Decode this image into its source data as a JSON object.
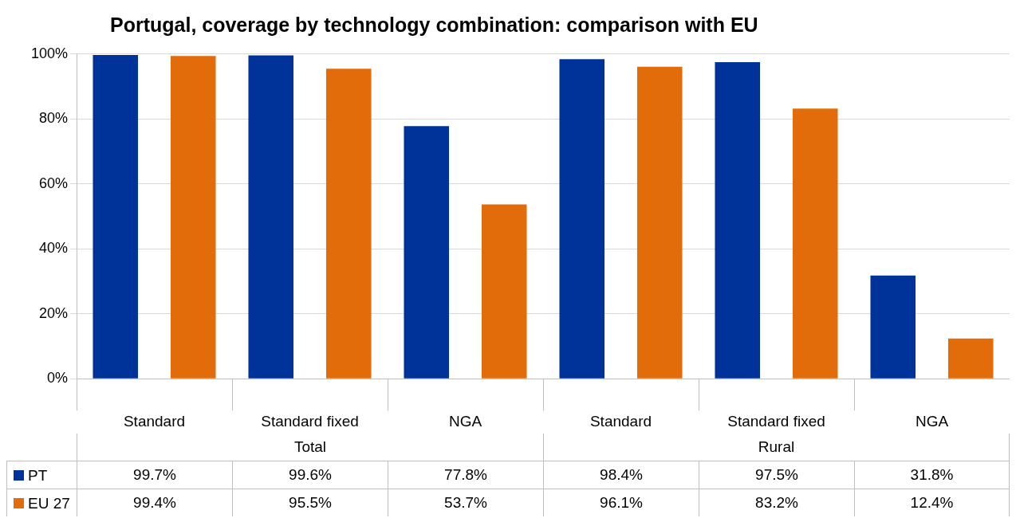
{
  "chart_data": {
    "type": "bar",
    "title": "Portugal, coverage by technology combination: comparison with EU",
    "categories": [
      "Standard",
      "Standard fixed",
      "NGA",
      "Standard",
      "Standard fixed",
      "NGA"
    ],
    "annotations": [
      "Total",
      "Rural"
    ],
    "series": [
      {
        "name": "PT",
        "color": "#003399",
        "values": [
          99.7,
          99.6,
          77.8,
          98.4,
          97.5,
          31.8
        ],
        "value_labels": [
          "99.7%",
          "99.6%",
          "77.8%",
          "98.4%",
          "97.5%",
          "31.8%"
        ]
      },
      {
        "name": "EU 27",
        "color": "#e36c0a",
        "values": [
          99.4,
          95.5,
          53.7,
          96.1,
          83.2,
          12.4
        ],
        "value_labels": [
          "99.4%",
          "95.5%",
          "53.7%",
          "96.1%",
          "83.2%",
          "12.4%"
        ]
      }
    ],
    "ylim": [
      0,
      100
    ],
    "yticks": [
      {
        "value": 0,
        "label": "0%"
      },
      {
        "value": 20,
        "label": "20%"
      },
      {
        "value": 40,
        "label": "40%"
      },
      {
        "value": 60,
        "label": "60%"
      },
      {
        "value": 80,
        "label": "80%"
      },
      {
        "value": 100,
        "label": "100%"
      }
    ],
    "grid": "y",
    "legend": "bottom"
  }
}
